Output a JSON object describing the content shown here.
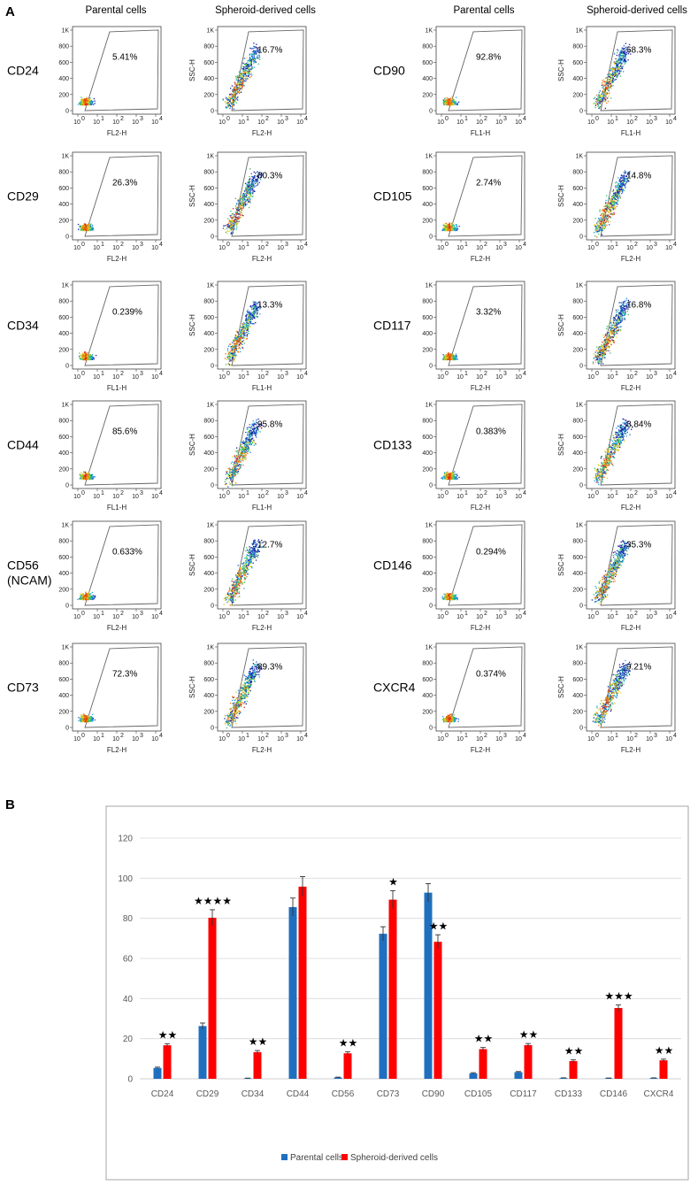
{
  "panel_a": {
    "label": "A",
    "column_headers": [
      "Parental cells",
      "Spheroid-derived cells",
      "Parental cells",
      "Spheroid-derived cells"
    ],
    "y_ticks": [
      "1K",
      "800",
      "600",
      "400",
      "200",
      "0"
    ],
    "x_ticks": [
      "10",
      "10",
      "10",
      "10",
      "10"
    ],
    "x_tick_exponents": [
      "0",
      "1",
      "2",
      "3",
      "4"
    ],
    "y_axis_label": "SSC-H",
    "left_markers": [
      {
        "marker": "CD24",
        "parental_pct": "5.41%",
        "spheroid_pct": "16.7%",
        "x_axis": "FL2-H"
      },
      {
        "marker": "CD29",
        "parental_pct": "26.3%",
        "spheroid_pct": "80.3%",
        "x_axis": "FL2-H"
      },
      {
        "marker": "CD34",
        "parental_pct": "0.239%",
        "spheroid_pct": "13.3%",
        "x_axis": "FL1-H"
      },
      {
        "marker": "CD44",
        "parental_pct": "85.6%",
        "spheroid_pct": "95.8%",
        "x_axis": "FL1-H"
      },
      {
        "marker": "CD56",
        "marker_line2": "(NCAM)",
        "parental_pct": "0.633%",
        "spheroid_pct": "12.7%",
        "x_axis": "FL2-H"
      },
      {
        "marker": "CD73",
        "parental_pct": "72.3%",
        "spheroid_pct": "89.3%",
        "x_axis": "FL2-H"
      }
    ],
    "right_markers": [
      {
        "marker": "CD90",
        "parental_pct": "92.8%",
        "spheroid_pct": "68.3%",
        "x_axis": "FL1-H"
      },
      {
        "marker": "CD105",
        "parental_pct": "2.74%",
        "spheroid_pct": "14.8%",
        "x_axis": "FL2-H"
      },
      {
        "marker": "CD117",
        "parental_pct": "3.32%",
        "spheroid_pct": "16.8%",
        "x_axis": "FL2-H"
      },
      {
        "marker": "CD133",
        "parental_pct": "0.383%",
        "spheroid_pct": "8.84%",
        "x_axis": "FL2-H"
      },
      {
        "marker": "CD146",
        "parental_pct": "0.294%",
        "spheroid_pct": "35.3%",
        "x_axis": "FL2-H"
      },
      {
        "marker": "CXCR4",
        "parental_pct": "0.374%",
        "spheroid_pct": "9.21%",
        "x_axis": "FL2-H"
      }
    ]
  },
  "panel_b": {
    "label": "B"
  },
  "colors": {
    "parental": "#1f6fbf",
    "spheroid": "#ff0000",
    "gridline": "#d9d9d9",
    "scatter_low": "#1a1aa0",
    "scatter_high": "#e02010"
  },
  "chart_data": {
    "type": "bar",
    "title": "",
    "xlabel": "",
    "ylabel": "",
    "ylim": [
      0,
      120
    ],
    "y_ticks": [
      0,
      20,
      40,
      60,
      80,
      100,
      120
    ],
    "grid": true,
    "legend_position": "bottom",
    "categories": [
      "CD24",
      "CD29",
      "CD34",
      "CD44",
      "CD56",
      "CD73",
      "CD90",
      "CD105",
      "CD117",
      "CD133",
      "CD146",
      "CXCR4"
    ],
    "series": [
      {
        "name": "Parental cells",
        "values": [
          5.41,
          26.3,
          0.239,
          85.6,
          0.633,
          72.3,
          92.8,
          2.74,
          3.32,
          0.383,
          0.294,
          0.374
        ],
        "errors": [
          0.4,
          1.5,
          0.1,
          4.5,
          0.2,
          3.5,
          4.5,
          0.3,
          0.3,
          0.1,
          0.1,
          0.1
        ]
      },
      {
        "name": "Spheroid-derived cells",
        "values": [
          16.7,
          80.3,
          13.3,
          95.8,
          12.7,
          89.3,
          68.3,
          14.8,
          16.8,
          8.84,
          35.3,
          9.21
        ],
        "errors": [
          0.8,
          4,
          0.8,
          5,
          0.8,
          4.5,
          3.5,
          0.8,
          0.8,
          0.6,
          1.5,
          0.6
        ]
      }
    ],
    "significance": [
      "★★",
      "★★★★",
      "★★",
      "",
      "★★",
      "★",
      "★★",
      "★★",
      "★★",
      "★★",
      "★★★",
      "★★"
    ]
  }
}
